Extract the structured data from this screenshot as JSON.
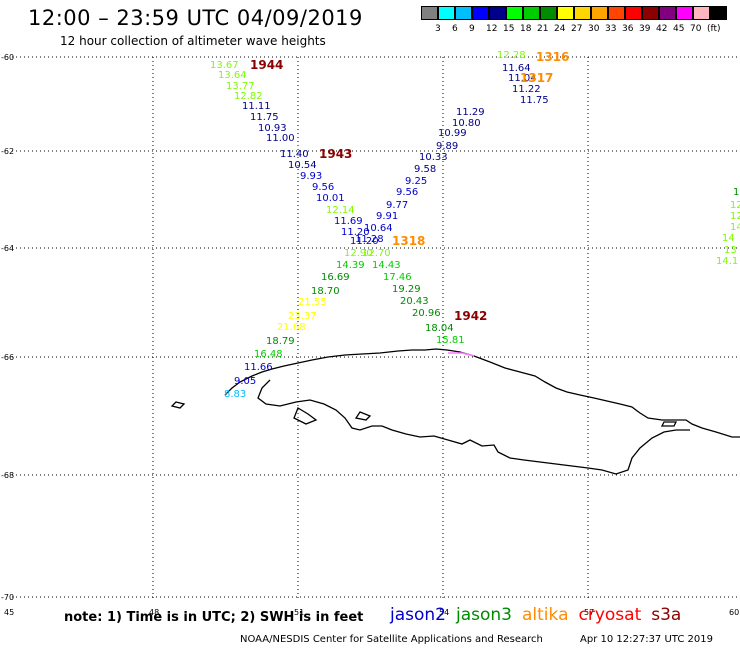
{
  "header": {
    "title": "12:00 – 23:59 UTC 04/09/2019",
    "subtitle": "12 hour collection of altimeter wave heights"
  },
  "color_scale": {
    "colors": [
      "#808080",
      "#00ffff",
      "#00bfff",
      "#0000ff",
      "#00008b",
      "#00ff00",
      "#00cd00",
      "#008b00",
      "#ffff00",
      "#ffd700",
      "#ffa500",
      "#ff4500",
      "#ff0000",
      "#8b0000",
      "#800080",
      "#ff00ff",
      "#ffb6c1",
      "#000000"
    ],
    "labels": [
      "3",
      "6",
      "9",
      "12",
      "15",
      "18",
      "21",
      "24",
      "27",
      "30",
      "33",
      "36",
      "39",
      "42",
      "45",
      "70",
      "(ft)"
    ]
  },
  "axes": {
    "lat_labels": [
      "-60",
      "-62",
      "-64",
      "-66",
      "-68",
      "-70"
    ],
    "lon_labels": [
      "45",
      "48",
      "51",
      "54",
      "57",
      "60"
    ]
  },
  "passes": [
    {
      "id": "1944",
      "label": "1944",
      "color": "#8b0000"
    },
    {
      "id": "1943",
      "label": "1943",
      "color": "#8b0000"
    },
    {
      "id": "1942",
      "label": "1942",
      "color": "#8b0000"
    },
    {
      "id": "1316",
      "label": "1316",
      "color": "#ff8c00"
    },
    {
      "id": "1317",
      "label": "1317",
      "color": "#ff8c00"
    },
    {
      "id": "1318",
      "label": "1318",
      "color": "#ff8c00"
    }
  ],
  "track_west": {
    "values": [
      "13.67",
      "13.64",
      "13.77",
      "12.82",
      "11.11",
      "11.75",
      "10.93",
      "11.00",
      "11.40",
      "10.54",
      "9.93",
      "9.56",
      "10.01",
      "12.14",
      "11.69",
      "11.20",
      "11.20",
      "12.90",
      "14.39",
      "16.69",
      "18.70",
      "21.55",
      "23.37",
      "21.68",
      "18.79",
      "16.48",
      "11.66",
      "9.05",
      "8.83"
    ],
    "colors": [
      "#7cfc00",
      "#7cfc00",
      "#7cfc00",
      "#7cfc00",
      "#00008b",
      "#00008b",
      "#00008b",
      "#00008b",
      "#00008b",
      "#00008b",
      "#0000cd",
      "#0000cd",
      "#0000cd",
      "#7cfc00",
      "#0000cd",
      "#0000cd",
      "#0000cd",
      "#7cfc00",
      "#00cd00",
      "#008b00",
      "#008b00",
      "#ffff00",
      "#ffff00",
      "#ffff00",
      "#008b00",
      "#00cd00",
      "#0000cd",
      "#0000cd",
      "#00bfff"
    ]
  },
  "track_east": {
    "values": [
      "12.28",
      "11.64",
      "11.04",
      "11.22",
      "11.75",
      "11.29",
      "10.80",
      "10.99",
      "9.89",
      "10.33",
      "9.58",
      "9.25",
      "9.56",
      "9.77",
      "9.91",
      "10.64",
      "11.28",
      "12.70",
      "14.43",
      "17.46",
      "19.29",
      "20.43",
      "20.96",
      "18.04",
      "15.81"
    ],
    "colors": [
      "#7cfc00",
      "#00008b",
      "#00008b",
      "#00008b",
      "#00008b",
      "#00008b",
      "#00008b",
      "#00008b",
      "#00008b",
      "#00008b",
      "#00008b",
      "#0000cd",
      "#0000cd",
      "#0000cd",
      "#0000cd",
      "#0000cd",
      "#0000cd",
      "#7cfc00",
      "#00cd00",
      "#00cd00",
      "#008b00",
      "#008b00",
      "#008b00",
      "#008b00",
      "#00cd00"
    ]
  },
  "edge_values": {
    "values": [
      "1",
      "12",
      "12",
      "14",
      "14",
      "13",
      "14.1"
    ],
    "colors": [
      "#008b00",
      "#7cfc00",
      "#7cfc00",
      "#7cfc00",
      "#7cfc00",
      "#7cfc00",
      "#7cfc00"
    ]
  },
  "footer": {
    "note": "note:  1) Time is in UTC;  2) SWH is in feet",
    "credit": "NOAA/NESDIS Center for Satellite Applications and Research",
    "timestamp": "Apr 10 12:27:37 UTC 2019"
  },
  "legend": [
    {
      "name": "jason2",
      "color": "#0000cd"
    },
    {
      "name": "jason3",
      "color": "#008b00"
    },
    {
      "name": "altika",
      "color": "#ff8c00"
    },
    {
      "name": "cryosat",
      "color": "#ff0000"
    },
    {
      "name": "s3a",
      "color": "#8b0000"
    }
  ]
}
